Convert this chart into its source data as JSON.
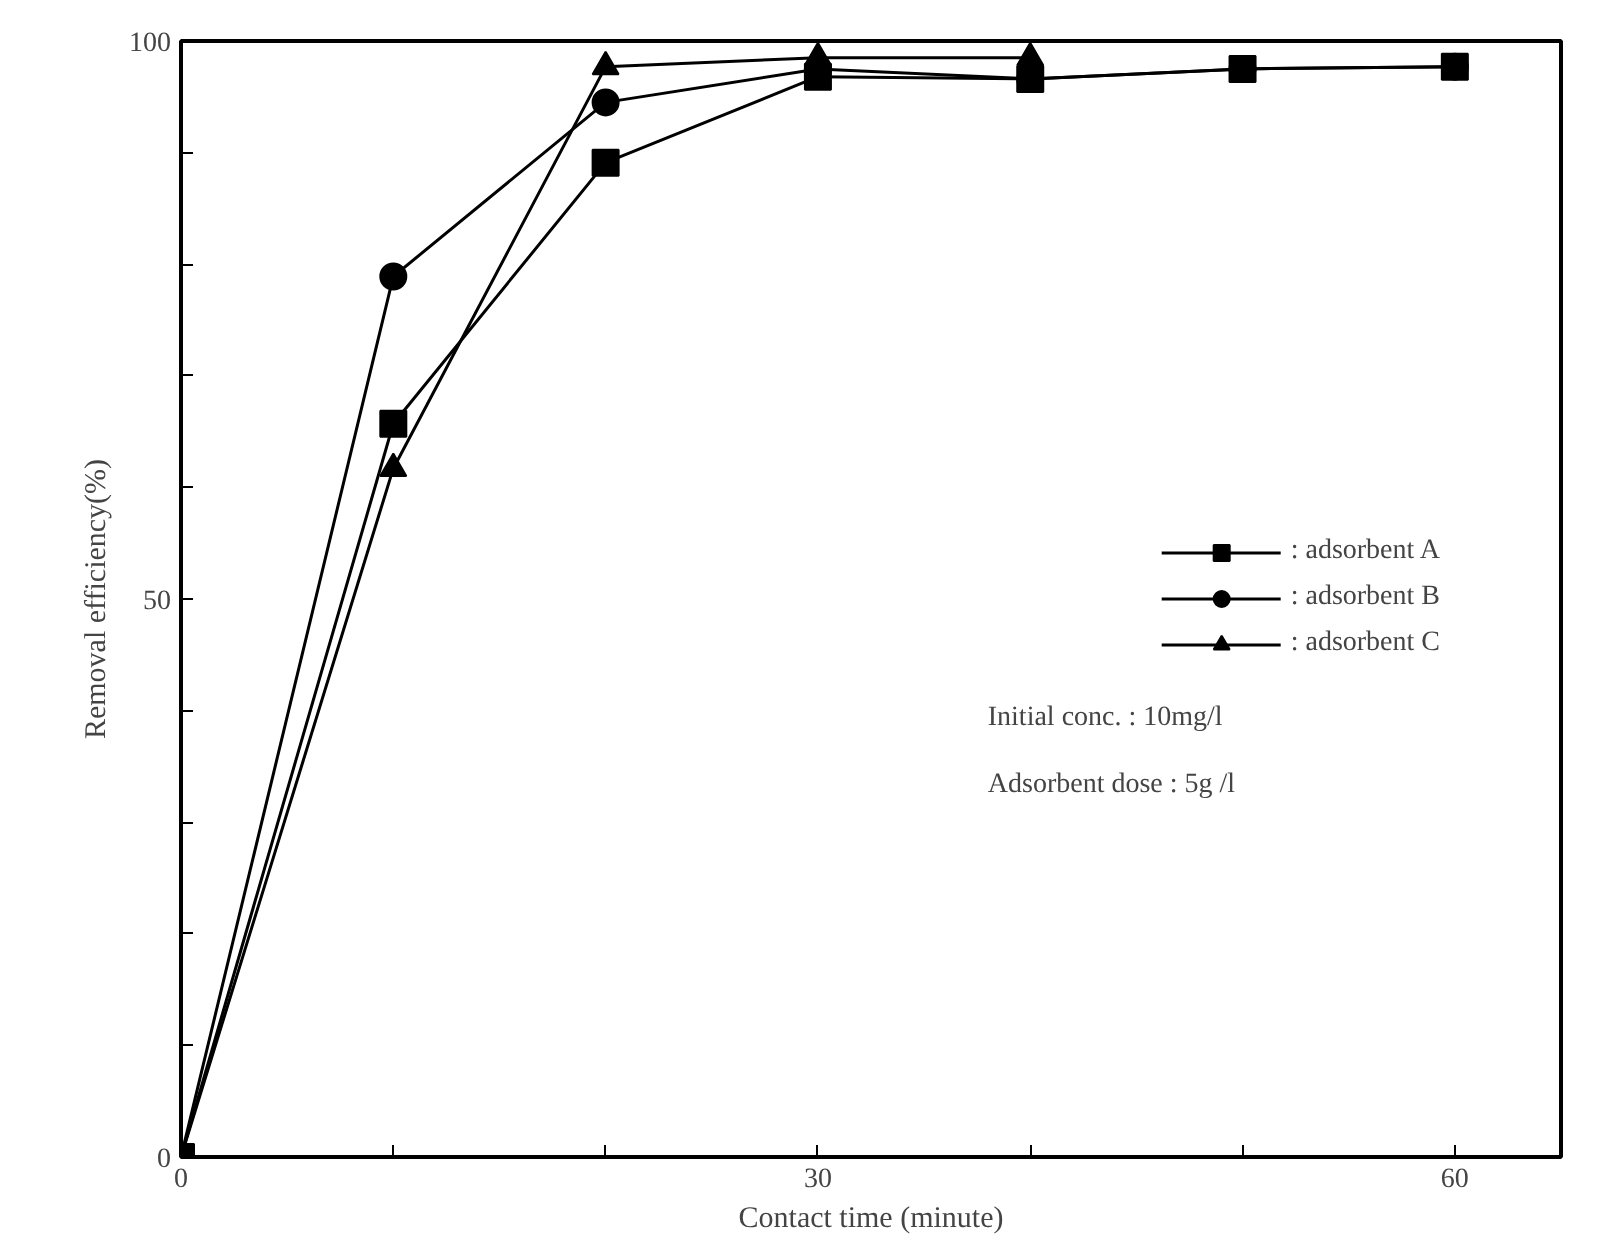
{
  "chart_data": {
    "type": "line",
    "xlabel": "Contact time (minute)",
    "ylabel": "Removal efficiency(%)",
    "x": [
      0,
      10,
      20,
      30,
      40,
      50,
      60
    ],
    "series": [
      {
        "name": ": adsorbent A",
        "color": "#000000",
        "marker": "square",
        "values": [
          0,
          65.7,
          89.1,
          96.8,
          96.6,
          97.5,
          97.7
        ]
      },
      {
        "name": ": adsorbent B",
        "color": "#000000",
        "marker": "circle",
        "values": [
          0,
          78.9,
          94.5,
          97.5,
          96.6,
          97.5,
          97.7
        ]
      },
      {
        "name": ": adsorbent C",
        "color": "#000000",
        "marker": "triangle",
        "values": [
          0,
          61.7,
          97.7,
          98.5,
          98.5,
          null,
          null
        ]
      }
    ],
    "xlim": [
      0,
      65
    ],
    "ylim": [
      0,
      100
    ],
    "xticks": [
      0,
      {
        "value": 10,
        "label": null
      },
      {
        "value": 20,
        "label": null
      },
      30,
      {
        "value": 40,
        "label": null
      },
      {
        "value": 50,
        "label": null
      },
      60
    ],
    "yticks": [
      0,
      {
        "value": 10,
        "label": null
      },
      {
        "value": 20,
        "label": null
      },
      {
        "value": 30,
        "label": null
      },
      {
        "value": 40,
        "label": null
      },
      50,
      {
        "value": 60,
        "label": null
      },
      {
        "value": 70,
        "label": null
      },
      {
        "value": 80,
        "label": null
      },
      {
        "value": 90,
        "label": null
      },
      100
    ],
    "annotations": [
      "Initial conc.  : 10mg/l",
      "Adsorbent dose : 5g /l"
    ],
    "legend": "right",
    "grid": false,
    "line_style": "solid"
  }
}
